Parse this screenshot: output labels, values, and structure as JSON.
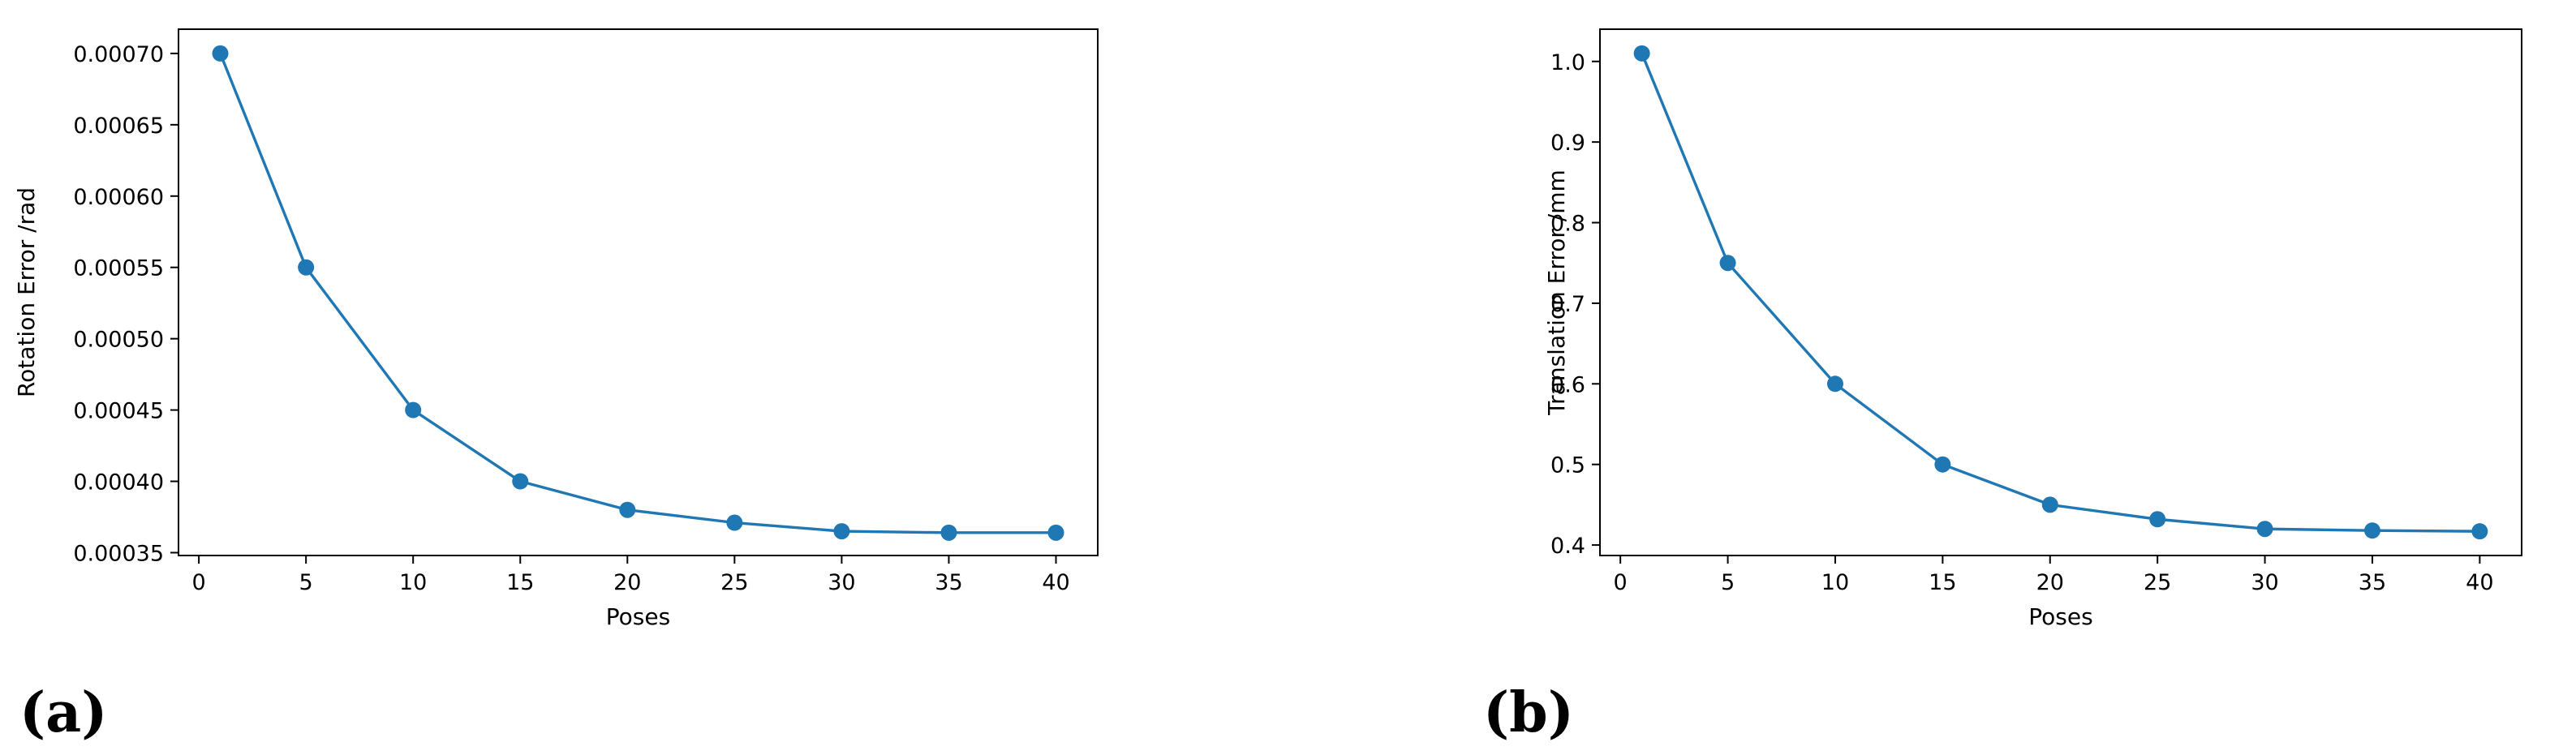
{
  "panel_labels": [
    "(a)",
    "(b)"
  ],
  "chart_data": [
    {
      "type": "line",
      "panel": "(a)",
      "xlabel": "Poses",
      "ylabel": "Rotation Error /rad",
      "x": [
        1,
        5,
        10,
        15,
        20,
        25,
        30,
        35,
        40
      ],
      "series": [
        {
          "values": [
            0.0007,
            0.00055,
            0.00045,
            0.0004,
            0.00038,
            0.000371,
            0.000365,
            0.000364,
            0.000364
          ]
        }
      ],
      "xlim": [
        -0.95,
        41.95
      ],
      "ylim": [
        0.000348,
        0.000717
      ],
      "xticks": [
        0,
        5,
        10,
        15,
        20,
        25,
        30,
        35,
        40
      ],
      "yticks": [
        0.00035,
        0.0004,
        0.00045,
        0.0005,
        0.00055,
        0.0006,
        0.00065,
        0.0007
      ],
      "ytick_labels": [
        "0.00035",
        "0.00040",
        "0.00045",
        "0.00050",
        "0.00055",
        "0.00060",
        "0.00065",
        "0.00070"
      ],
      "grid": false,
      "color": "#1f77b4"
    },
    {
      "type": "line",
      "panel": "(b)",
      "xlabel": "Poses",
      "ylabel": "Translation Error /mm",
      "x": [
        1,
        5,
        10,
        15,
        20,
        25,
        30,
        35,
        40
      ],
      "series": [
        {
          "values": [
            1.01,
            0.75,
            0.6,
            0.5,
            0.45,
            0.432,
            0.42,
            0.418,
            0.417
          ]
        }
      ],
      "xlim": [
        -0.95,
        41.95
      ],
      "ylim": [
        0.387,
        1.04
      ],
      "xticks": [
        0,
        5,
        10,
        15,
        20,
        25,
        30,
        35,
        40
      ],
      "yticks": [
        0.4,
        0.5,
        0.6,
        0.7,
        0.8,
        0.9,
        1.0
      ],
      "ytick_labels": [
        "0.4",
        "0.5",
        "0.6",
        "0.7",
        "0.8",
        "0.9",
        "1.0"
      ],
      "grid": false,
      "color": "#1f77b4"
    }
  ]
}
